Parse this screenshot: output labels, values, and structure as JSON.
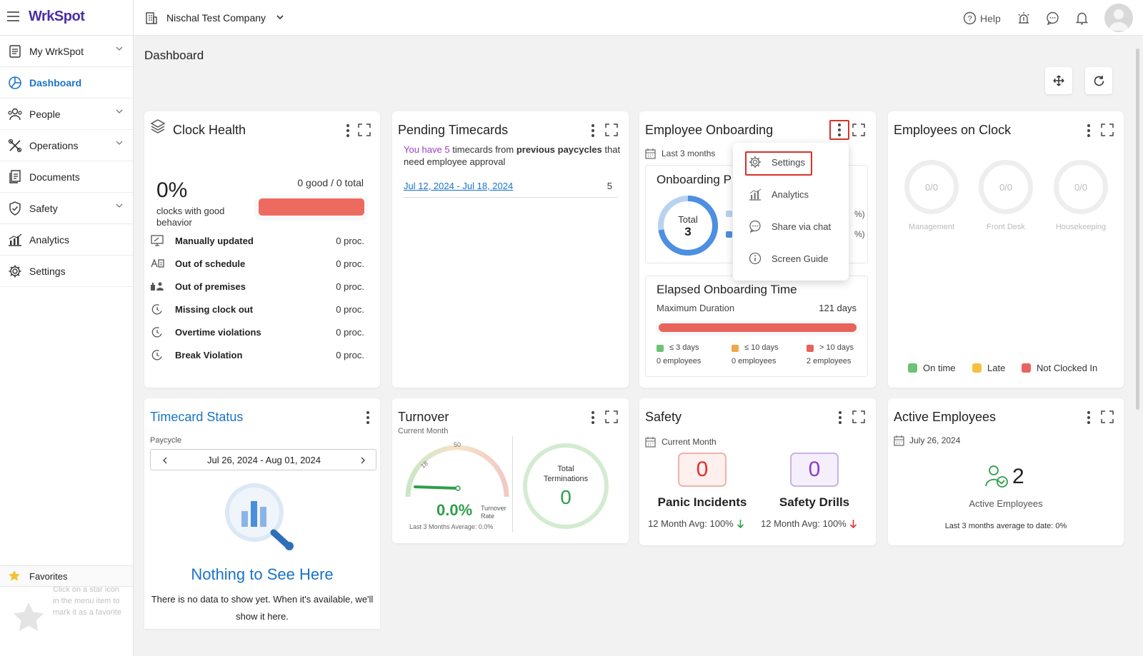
{
  "app": {
    "logo": "WrkSpot",
    "company": "Nischal Test Company",
    "help": "Help"
  },
  "sidebar": {
    "items": [
      {
        "label": "My WrkSpot"
      },
      {
        "label": "Dashboard"
      },
      {
        "label": "People"
      },
      {
        "label": "Operations"
      },
      {
        "label": "Documents"
      },
      {
        "label": "Safety"
      },
      {
        "label": "Analytics"
      },
      {
        "label": "Settings"
      }
    ],
    "favorites": {
      "label": "Favorites",
      "hint": "Click on a star icon in the menu item to mark it as a favorite"
    }
  },
  "page": {
    "title": "Dashboard"
  },
  "clock_health": {
    "title": "Clock Health",
    "percent": "0%",
    "percent_caption": "clocks with good behavior",
    "good_total": "0 good / 0 total",
    "rows": [
      {
        "label": "Manually updated",
        "value": "0 proc."
      },
      {
        "label": "Out of schedule",
        "value": "0 proc."
      },
      {
        "label": "Out of premises",
        "value": "0 proc."
      },
      {
        "label": "Missing clock out",
        "value": "0 proc."
      },
      {
        "label": "Overtime violations",
        "value": "0 proc."
      },
      {
        "label": "Break Violation",
        "value": "0 proc."
      }
    ]
  },
  "pending_timecards": {
    "title": "Pending Timecards",
    "msg_prefix": "You have",
    "msg_count": "5",
    "msg_mid": "timecards from",
    "msg_bold": "previous paycycles",
    "msg_suffix": "that need employee approval",
    "range_link": "Jul 12, 2024 - Jul 18, 2024",
    "range_count": "5"
  },
  "onboarding": {
    "title": "Employee Onboarding",
    "period": "Last 3 months",
    "progress_title": "Onboarding P",
    "total_label": "Total",
    "total_value": "3",
    "pct1": "%)",
    "pct2": "%)",
    "elapsed": {
      "title": "Elapsed Onboarding Time",
      "max_label": "Maximum Duration",
      "max_value": "121 days",
      "legend": [
        {
          "label": "≤ 3 days",
          "count": "0 employees",
          "color": "#6cc276"
        },
        {
          "label": "≤ 10 days",
          "count": "0 employees",
          "color": "#f0a64a"
        },
        {
          "label": "> 10 days",
          "count": "2 employees",
          "color": "#e8635a"
        }
      ]
    },
    "menu": [
      {
        "label": "Settings"
      },
      {
        "label": "Analytics"
      },
      {
        "label": "Share via chat"
      },
      {
        "label": "Screen Guide"
      }
    ]
  },
  "employees_on_clock": {
    "title": "Employees on Clock",
    "rings": [
      {
        "value": "0/0",
        "label": "Management"
      },
      {
        "value": "0/0",
        "label": "Front Desk"
      },
      {
        "value": "0/0",
        "label": "Housekeeping"
      }
    ],
    "legend": [
      {
        "label": "On time",
        "color": "#6cc276"
      },
      {
        "label": "Late",
        "color": "#f5c142"
      },
      {
        "label": "Not Clocked In",
        "color": "#e8635a"
      }
    ]
  },
  "timecard_status": {
    "title": "Timecard Status",
    "paycycle_label": "Paycycle",
    "range": "Jul 26, 2024 - Aug 01, 2024",
    "empty_title": "Nothing to See Here",
    "empty_text": "There is no data to show yet. When it's available, we'll show it here."
  },
  "turnover": {
    "title": "Turnover",
    "period": "Current Month",
    "tick1": "18",
    "tick2": "50",
    "rate": "0.0%",
    "rate_label1": "Turnover",
    "rate_label2": "Rate",
    "avg": "Last 3 Months Average: 0.0%",
    "term_label1": "Total",
    "term_label2": "Terminations",
    "term_value": "0"
  },
  "safety": {
    "title": "Safety",
    "period": "Current Month",
    "panic_value": "0",
    "panic_label": "Panic Incidents",
    "panic_avg": "12 Month Avg: 100%",
    "drills_value": "0",
    "drills_label": "Safety Drills",
    "drills_avg": "12 Month Avg: 100%"
  },
  "active_employees": {
    "title": "Active Employees",
    "date": "July 26, 2024",
    "value": "2",
    "label": "Active Employees",
    "avg": "Last 3 months average to date: 0%"
  }
}
